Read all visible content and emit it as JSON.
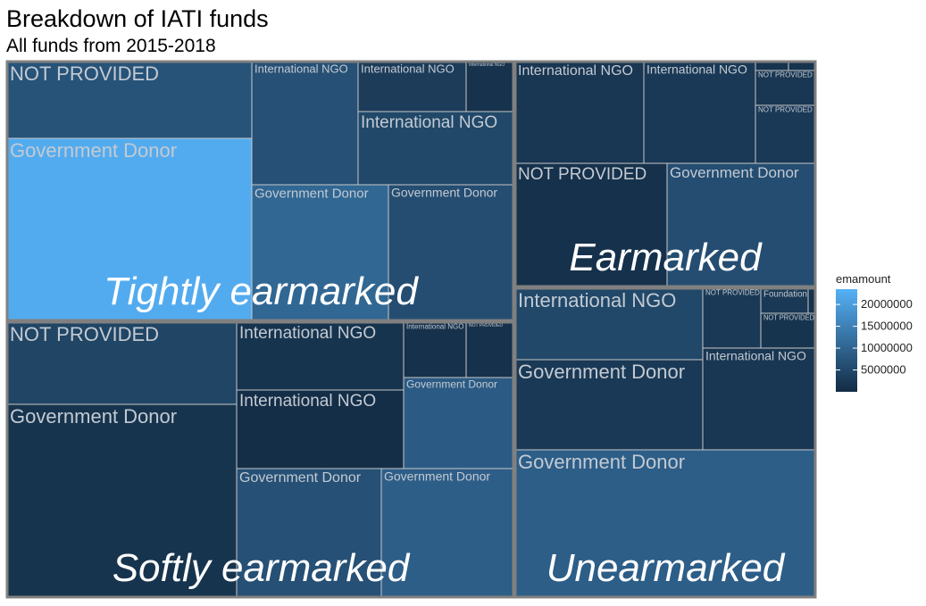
{
  "chart_data": {
    "type": "treemap",
    "title": "Breakdown of IATI funds",
    "subtitle": "All funds from 2015-2018",
    "legend": {
      "title": "emamount",
      "placement": "right",
      "range": [
        0,
        23500000
      ],
      "ticks": [
        {
          "value": 20000000,
          "label": "20000000"
        },
        {
          "value": 15000000,
          "label": "15000000"
        },
        {
          "value": 10000000,
          "label": "10000000"
        },
        {
          "value": 5000000,
          "label": "5000000"
        }
      ],
      "color_low": "#132b43",
      "color_high": "#56b1f7"
    },
    "groups": [
      {
        "name": "Tightly earmarked",
        "tiles": [
          {
            "label": "NOT PROVIDED",
            "value": 7000000
          },
          {
            "label": "Government Donor",
            "value": 22500000
          },
          {
            "label": "International NGO",
            "value": 6500000
          },
          {
            "label": "International NGO",
            "value": 3000000
          },
          {
            "label": "International NGO",
            "value": 1200000
          },
          {
            "label": "International NGO",
            "value": 5000000
          },
          {
            "label": "Government Donor",
            "value": 10500000
          },
          {
            "label": "Government Donor",
            "value": 6000000
          }
        ]
      },
      {
        "name": "Earmarked",
        "tiles": [
          {
            "label": "International NGO",
            "value": 2000000
          },
          {
            "label": "International NGO",
            "value": 2500000
          },
          {
            "label": "",
            "value": 1500000
          },
          {
            "label": "",
            "value": 1500000
          },
          {
            "label": "NOT PROVIDED",
            "value": 2000000
          },
          {
            "label": "NOT PROVIDED",
            "value": 2500000
          },
          {
            "label": "NOT PROVIDED",
            "value": 1000000
          },
          {
            "label": "Government Donor",
            "value": 6000000
          }
        ]
      },
      {
        "name": "Softly earmarked",
        "tiles": [
          {
            "label": "NOT PROVIDED",
            "value": 4500000
          },
          {
            "label": "Government Donor",
            "value": 1500000
          },
          {
            "label": "International NGO",
            "value": 1500000
          },
          {
            "label": "International NGO",
            "value": 1000000
          },
          {
            "label": "NOT PROVIDED",
            "value": 1000000
          },
          {
            "label": "International NGO",
            "value": 500000
          },
          {
            "label": "Government Donor",
            "value": 8500000
          },
          {
            "label": "Government Donor",
            "value": 6500000
          },
          {
            "label": "Government Donor",
            "value": 9000000
          }
        ]
      },
      {
        "name": "Unearmarked",
        "tiles": [
          {
            "label": "International NGO",
            "value": 5000000
          },
          {
            "label": "NOT PROVIDED",
            "value": 2500000
          },
          {
            "label": "Foundation",
            "value": 2500000
          },
          {
            "label": "",
            "value": 1000000
          },
          {
            "label": "NOT PROVIDED",
            "value": 1500000
          },
          {
            "label": "Government Donor",
            "value": 2500000
          },
          {
            "label": "International NGO",
            "value": 2000000
          },
          {
            "label": "Government Donor",
            "value": 9000000
          }
        ]
      }
    ]
  }
}
